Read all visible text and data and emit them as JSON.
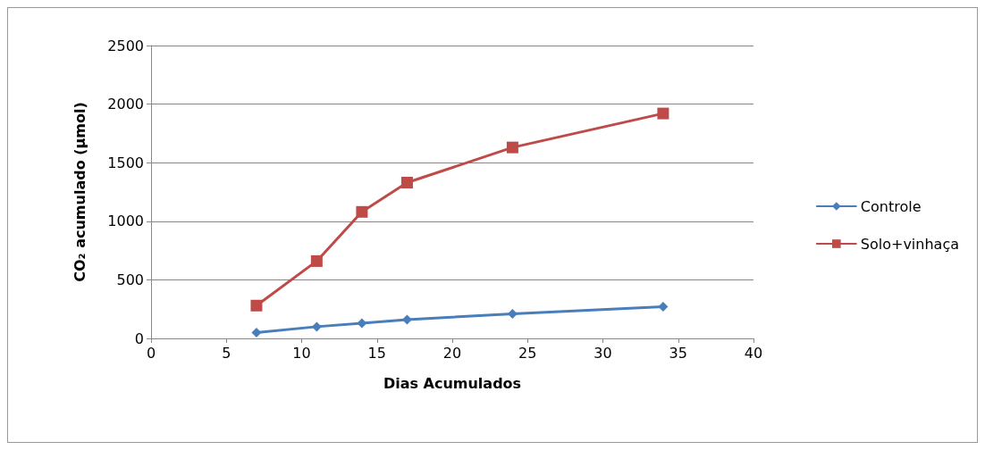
{
  "chart_data": {
    "type": "line",
    "xlabel": "Dias Acumulados",
    "ylabel": "CO₂ acumulado (µmol)",
    "x": [
      7,
      11,
      14,
      17,
      24,
      34
    ],
    "series": [
      {
        "name": "Controle",
        "color": "#4a7ebb",
        "marker": "diamond",
        "values": [
          50,
          100,
          130,
          160,
          210,
          270
        ]
      },
      {
        "name": "Solo+vinhaça",
        "color": "#be4b48",
        "marker": "square",
        "values": [
          280,
          660,
          1080,
          1330,
          1630,
          1920
        ]
      }
    ],
    "xlim": [
      0,
      40
    ],
    "xticks": [
      0,
      5,
      10,
      15,
      20,
      25,
      30,
      35,
      40
    ],
    "ylim": [
      0,
      2500
    ],
    "yticks": [
      0,
      500,
      1000,
      1500,
      2000,
      2500
    ],
    "grid": "y",
    "legend": "right"
  }
}
